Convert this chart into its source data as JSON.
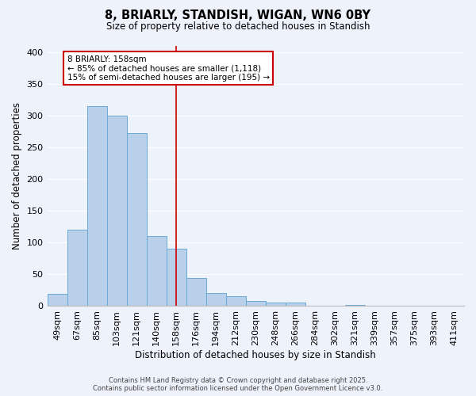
{
  "title": "8, BRIARLY, STANDISH, WIGAN, WN6 0BY",
  "subtitle": "Size of property relative to detached houses in Standish",
  "xlabel": "Distribution of detached houses by size in Standish",
  "ylabel": "Number of detached properties",
  "bar_color": "#b8d0ea",
  "bar_edge_color": "#6aaad4",
  "bg_color": "#eef2fa",
  "grid_color": "#ffffff",
  "categories": [
    "49sqm",
    "67sqm",
    "85sqm",
    "103sqm",
    "121sqm",
    "140sqm",
    "158sqm",
    "176sqm",
    "194sqm",
    "212sqm",
    "230sqm",
    "248sqm",
    "266sqm",
    "284sqm",
    "302sqm",
    "321sqm",
    "339sqm",
    "357sqm",
    "375sqm",
    "393sqm",
    "411sqm"
  ],
  "values": [
    19,
    120,
    315,
    300,
    272,
    110,
    90,
    44,
    20,
    16,
    8,
    5,
    5,
    0,
    1,
    2,
    0,
    1,
    0,
    0,
    1
  ],
  "vline_x": 6,
  "vline_color": "#cc0000",
  "annotation_title": "8 BRIARLY: 158sqm",
  "annotation_line1": "← 85% of detached houses are smaller (1,118)",
  "annotation_line2": "15% of semi-detached houses are larger (195) →",
  "annotation_box_color": "#ffffff",
  "annotation_box_edge": "#cc0000",
  "ylim": [
    0,
    410
  ],
  "yticks": [
    0,
    50,
    100,
    150,
    200,
    250,
    300,
    350,
    400
  ],
  "footer_line1": "Contains HM Land Registry data © Crown copyright and database right 2025.",
  "footer_line2": "Contains public sector information licensed under the Open Government Licence v3.0."
}
